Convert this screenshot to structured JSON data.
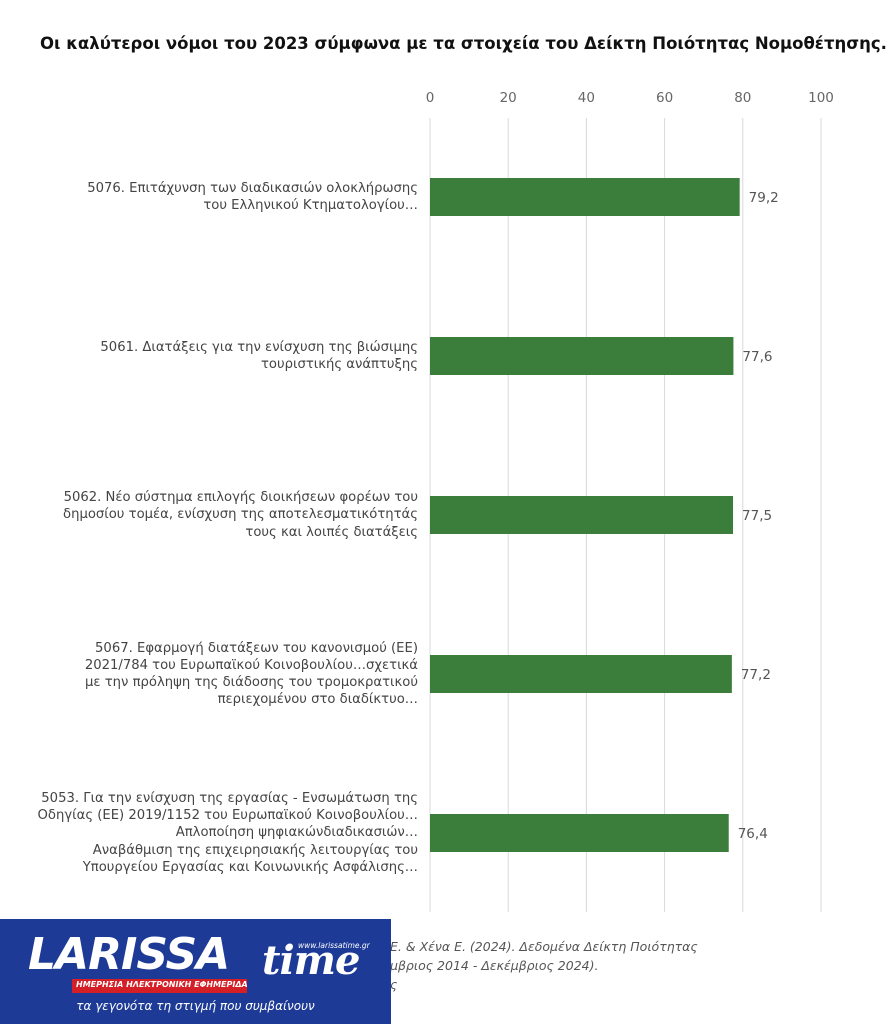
{
  "title": "Οι καλύτεροι νόμοι του 2023 σύμφωνα με τα στοιχεία του Δείκτη Ποιότητας Νομοθέτησης.",
  "chart_data": {
    "type": "bar",
    "orientation": "horizontal",
    "categories": [
      "5076. Επιτάχυνση των διαδικασιών ολοκλήρωσης του Ελληνικού Κτηματολογίου…",
      "5061. Διατάξεις για την ενίσχυση της βιώσιμης τουριστικής ανάπτυξης",
      "5062. Νέο σύστημα επιλογής διοικήσεων φορέων του δημοσίου τομέα, ενίσχυση της αποτελεσματικότητάς τους και λοιπές διατάξεις",
      "5067. Εφαρμογή διατάξεων του κανονισμού (ΕΕ) 2021/784 του Ευρωπαϊκού Κοινοβουλίου…σχετικά με την πρόληψη της διάδοσης του τρομοκρατικού περιεχομένου στο διαδίκτυο…",
      "5053. Για την ενίσχυση της εργασίας - Ενσωμάτωση της Οδηγίας (ΕΕ) 2019/1152 του Ευρωπαϊκού Κοινοβουλίου… Απλοποίηση ψηφιακώνδιαδικασιών… Αναβάθμιση της επιχειρησιακής λειτουργίας του Υπουργείου Εργασίας και Κοινωνικής Ασφάλισης…"
    ],
    "label_lines": [
      [
        "5076. Επιτάχυνση των διαδικασιών ολοκλήρωσης",
        "του Ελληνικού Κτηματολογίου…"
      ],
      [
        "5061. Διατάξεις για την ενίσχυση της βιώσιμης",
        "τουριστικής ανάπτυξης"
      ],
      [
        "5062. Νέο σύστημα επιλογής διοικήσεων φορέων του",
        "δημοσίου τομέα, ενίσχυση της αποτελεσματικότητάς",
        "τους και λοιπές διατάξεις"
      ],
      [
        "5067. Εφαρμογή διατάξεων του κανονισμού (ΕΕ)",
        "2021/784 του Ευρωπαϊκού Κοινοβουλίου…σχετικά",
        "με την πρόληψη της διάδοσης του τρομοκρατικού",
        "περιεχομένου στο διαδίκτυο…"
      ],
      [
        "5053. Για την ενίσχυση της εργασίας - Ενσωμάτωση της",
        "Οδηγίας (ΕΕ) 2019/1152 του Ευρωπαϊκού Κοινοβουλίου…",
        "Απλοποίηση ψηφιακώνδιαδικασιών…",
        "Αναβάθμιση της επιχειρησιακής λειτουργίας του",
        "Υπουργείου Εργασίας και Κοινωνικής Ασφάλισης…"
      ]
    ],
    "values": [
      79.2,
      77.6,
      77.5,
      77.2,
      76.4
    ],
    "value_labels": [
      "79,2",
      "77,6",
      "77,5",
      "77,2",
      "76,4"
    ],
    "xlim": [
      0,
      100
    ],
    "xticks": [
      0,
      20,
      40,
      60,
      80,
      100
    ],
    "axis_position": "top",
    "grid": true,
    "bar_color": "#3b7d3b",
    "grid_color": "#d9d9d9"
  },
  "source": {
    "line1": "Ε. & Χένα Ε. (2024). Δεδομένα Δείκτη Ποιότητας",
    "line2": "μβριος 2014 - Δεκέμβριος 2024).",
    "line3": "ς"
  },
  "logo": {
    "word1": "LARISSA",
    "word2": "time",
    "url": "www.larissatime.gr",
    "subtitle": "ΗΜΕΡΗΣΙΑ ΗΛΕΚΤΡΟΝΙΚΗ ΕΦΗΜΕΡΙΔΑ",
    "tagline": "τα γεγονότα τη στιγμή που συμβαίνουν",
    "brand_color": "#1d3a96",
    "accent_color": "#d51f26"
  }
}
